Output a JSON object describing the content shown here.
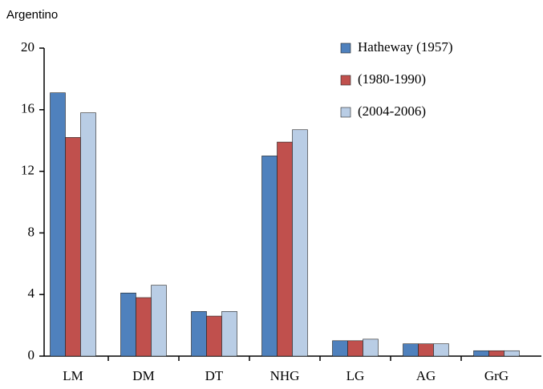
{
  "chart_data": {
    "type": "bar",
    "title": "Argentino",
    "categories": [
      "LM",
      "DM",
      "DT",
      "NHG",
      "LG",
      "AG",
      "GrG"
    ],
    "series": [
      {
        "name": "Hatheway (1957)",
        "color": "#4f81bd",
        "values": [
          17.1,
          4.1,
          2.9,
          13.0,
          1.0,
          0.8,
          0.35
        ]
      },
      {
        "name": "(1980-1990)",
        "color": "#c0504d",
        "values": [
          14.2,
          3.8,
          2.6,
          13.9,
          1.0,
          0.8,
          0.35
        ]
      },
      {
        "name": "(2004-2006)",
        "color": "#b9cde5",
        "values": [
          15.8,
          4.6,
          2.9,
          14.7,
          1.1,
          0.8,
          0.35
        ]
      }
    ],
    "ylim": [
      0,
      20
    ],
    "yticks": [
      0,
      4,
      8,
      12,
      16,
      20
    ],
    "grid": false,
    "legend": "top-right"
  }
}
